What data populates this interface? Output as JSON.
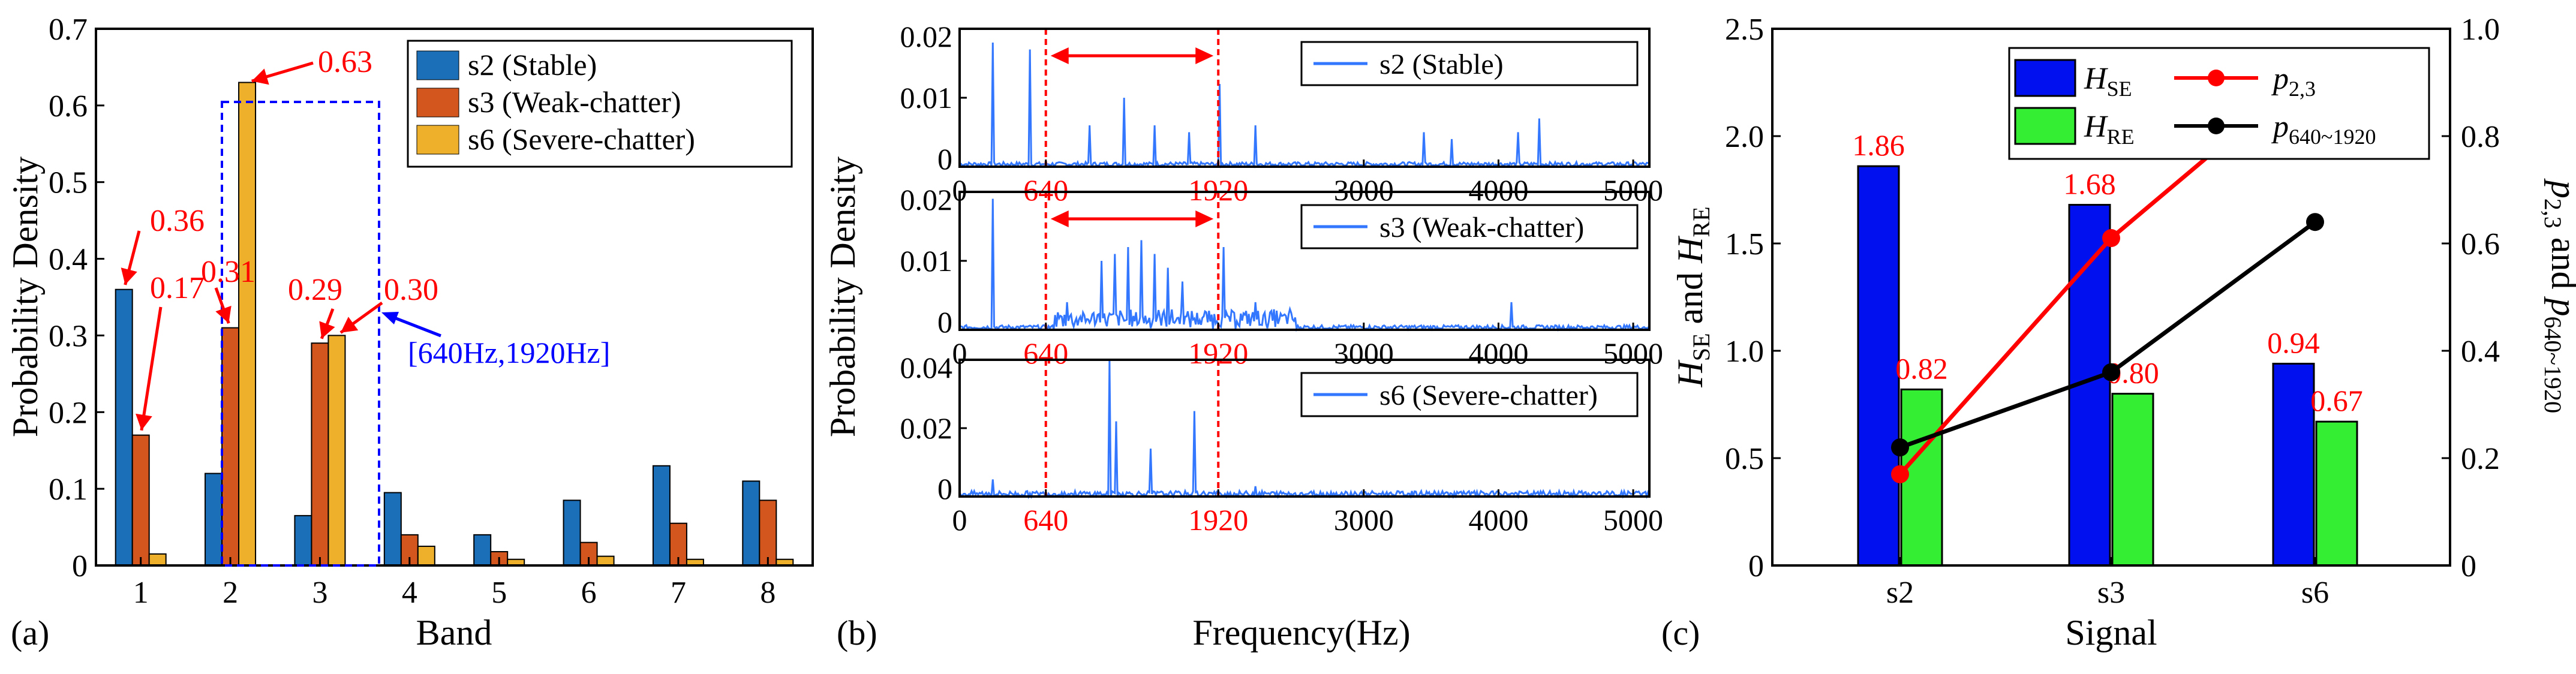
{
  "colors": {
    "s2": "#1a6fb8",
    "s3": "#d2561e",
    "s6": "#eeb02a",
    "red": "#ff0000",
    "blue": "#0000ff",
    "spectrum": "#3377ff",
    "hse": "#0010ee",
    "hre": "#33ee33",
    "black": "#000000"
  },
  "panel_a": {
    "letter": "(a)",
    "ylabel": "Probability Density",
    "xlabel": "Band",
    "box_label": "[640Hz,1920Hz]",
    "annotations": [
      "0.36",
      "0.17",
      "0.31",
      "0.63",
      "0.29",
      "0.30"
    ]
  },
  "panel_b": {
    "letter": "(b)",
    "ylabel": "Probability Density",
    "xlabel": "Frequency(Hz)",
    "marker_labels": [
      "640",
      "1920"
    ]
  },
  "panel_c": {
    "letter": "(c)",
    "xlabel": "Signal",
    "ylabel_left": "H_SE and H_RE",
    "ylabel_right": "p_2,3 and p_640~1920",
    "legend": [
      "H_SE",
      "H_RE",
      "p_2,3",
      "p_640~1920"
    ]
  },
  "chart_data": [
    {
      "type": "bar",
      "title": "",
      "xlabel": "Band",
      "ylabel": "Probability Density",
      "categories": [
        "1",
        "2",
        "3",
        "4",
        "5",
        "6",
        "7",
        "8"
      ],
      "ylim": [
        0,
        0.7
      ],
      "yticks": [
        "0",
        "0.1",
        "0.2",
        "0.3",
        "0.4",
        "0.5",
        "0.6",
        "0.7"
      ],
      "legend_position": "top-right",
      "series": [
        {
          "name": "s2 (Stable)",
          "values": [
            0.36,
            0.12,
            0.065,
            0.095,
            0.04,
            0.085,
            0.13,
            0.11
          ]
        },
        {
          "name": "s3 (Weak-chatter)",
          "values": [
            0.17,
            0.31,
            0.29,
            0.04,
            0.018,
            0.03,
            0.055,
            0.085
          ]
        },
        {
          "name": "s6 (Severe-chatter)",
          "values": [
            0.015,
            0.63,
            0.3,
            0.025,
            0.008,
            0.012,
            0.008,
            0.008
          ]
        }
      ],
      "highlight_band": "[640Hz,1920Hz]"
    },
    {
      "type": "line",
      "title": "",
      "xlabel": "Frequency(Hz)",
      "ylabel": "Probability Density",
      "xlim": [
        0,
        5120
      ],
      "xticks": [
        "0",
        "640",
        "1920",
        "3000",
        "4000",
        "5000"
      ],
      "red_markers": [
        640,
        1920
      ],
      "subplots": [
        {
          "name": "s2 (Stable)",
          "ylim": [
            0,
            0.02
          ],
          "yticks": [
            "0",
            "0.01",
            "0.02"
          ],
          "peaks": [
            [
              250,
              0.018
            ],
            [
              520,
              0.017
            ],
            [
              960,
              0.006
            ],
            [
              1220,
              0.01
            ],
            [
              1450,
              0.006
            ],
            [
              1700,
              0.005
            ],
            [
              1930,
              0.012
            ],
            [
              2200,
              0.006
            ],
            [
              3450,
              0.005
            ],
            [
              3650,
              0.004
            ],
            [
              4150,
              0.005
            ],
            [
              4300,
              0.007
            ]
          ],
          "arrow": [
            640,
            1920
          ]
        },
        {
          "name": "s3 (Weak-chatter)",
          "ylim": [
            0,
            0.02
          ],
          "yticks": [
            "0",
            "0.01",
            "0.02"
          ],
          "peaks": [
            [
              250,
              0.019
            ],
            [
              800,
              0.004
            ],
            [
              1050,
              0.01
            ],
            [
              1150,
              0.011
            ],
            [
              1250,
              0.012
            ],
            [
              1350,
              0.013
            ],
            [
              1450,
              0.011
            ],
            [
              1550,
              0.009
            ],
            [
              1650,
              0.007
            ],
            [
              1960,
              0.012
            ],
            [
              2200,
              0.004
            ],
            [
              2450,
              0.003
            ],
            [
              4100,
              0.004
            ]
          ],
          "arrow": [
            640,
            1920
          ]
        },
        {
          "name": "s6 (Severe-chatter)",
          "ylim": [
            0,
            0.04
          ],
          "yticks": [
            "0",
            "0.02",
            "0.04"
          ],
          "peaks": [
            [
              250,
              0.005
            ],
            [
              1110,
              0.04
            ],
            [
              1160,
              0.022
            ],
            [
              1420,
              0.014
            ],
            [
              1740,
              0.025
            ],
            [
              2200,
              0.003
            ]
          ]
        }
      ]
    },
    {
      "type": "bar",
      "title": "",
      "xlabel": "Signal",
      "ylabel": "H_SE and H_RE",
      "y2label": "p_2,3 and p_640~1920",
      "categories": [
        "s2",
        "s3",
        "s6"
      ],
      "ylim": [
        0,
        2.5
      ],
      "yticks": [
        "0",
        "0.5",
        "1.0",
        "1.5",
        "2.0",
        "2.5"
      ],
      "y2lim": [
        0,
        1.0
      ],
      "y2ticks": [
        "0",
        "0.2",
        "0.4",
        "0.6",
        "0.8",
        "1.0"
      ],
      "series": [
        {
          "name": "H_SE",
          "values": [
            1.86,
            1.68,
            0.94
          ],
          "labels": [
            "1.86",
            "1.68",
            "0.94"
          ]
        },
        {
          "name": "H_RE",
          "values": [
            0.82,
            0.8,
            0.67
          ],
          "labels": [
            "0.82",
            "0.80",
            "0.67"
          ]
        }
      ],
      "lines": [
        {
          "name": "p_2,3",
          "values": [
            0.17,
            0.61,
            0.93
          ]
        },
        {
          "name": "p_640~1920",
          "values": [
            0.22,
            0.36,
            0.64
          ]
        }
      ]
    }
  ]
}
